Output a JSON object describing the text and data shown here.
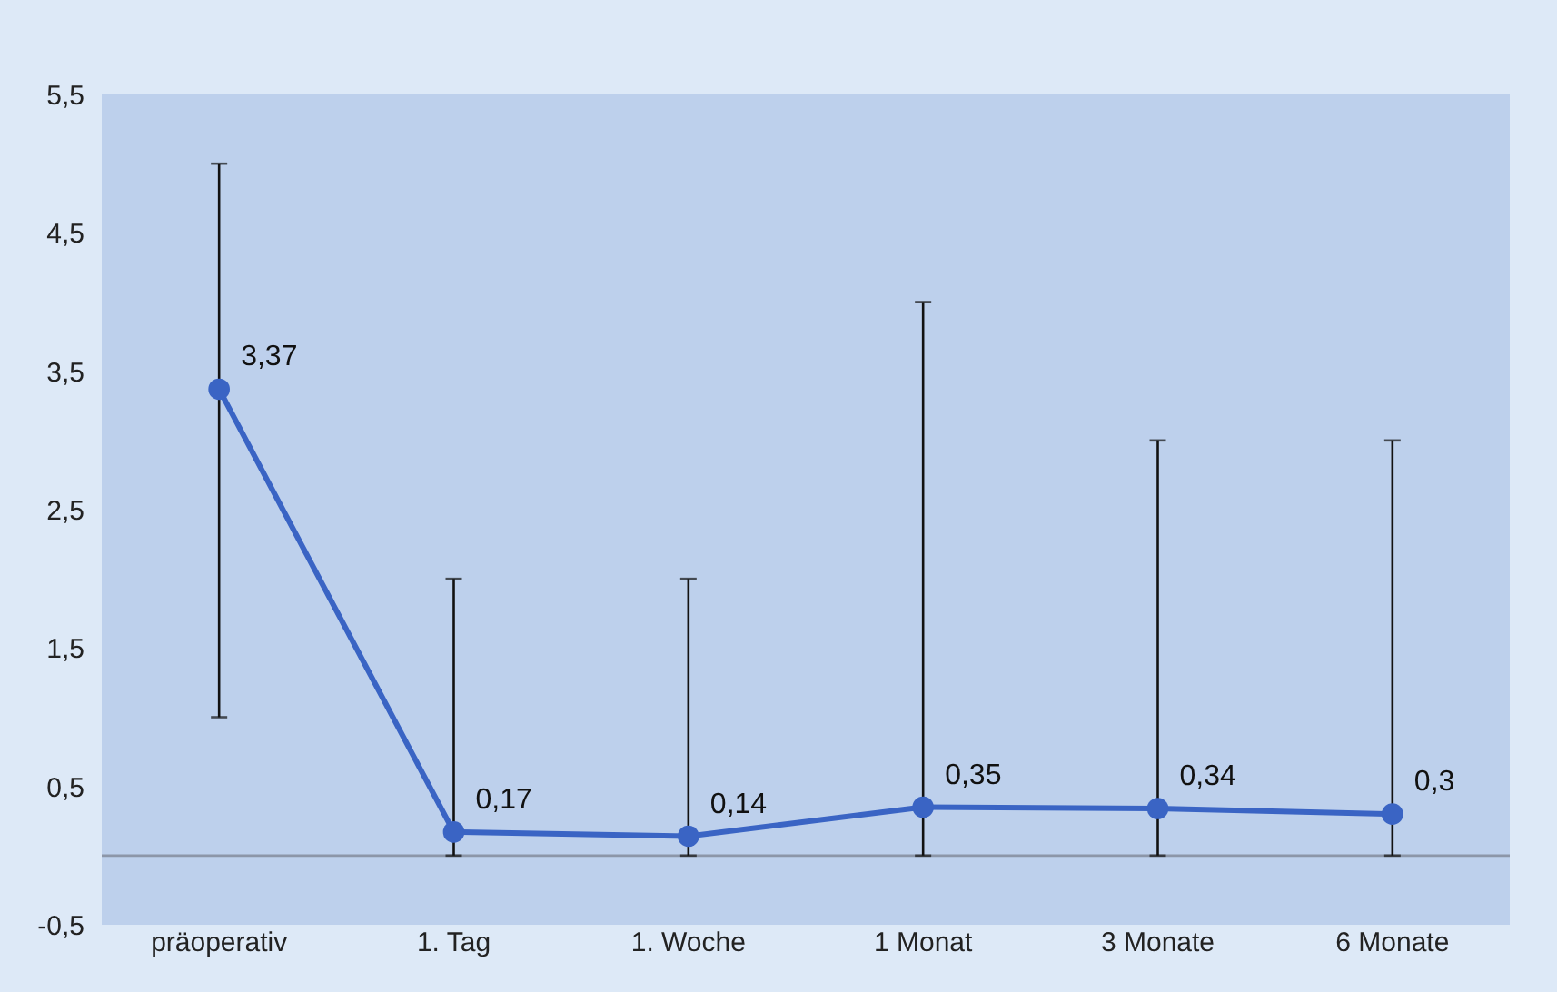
{
  "chart_data": {
    "type": "line",
    "categories": [
      "präoperativ",
      "1. Tag",
      "1. Woche",
      "1 Monat",
      "3 Monate",
      "6 Monate"
    ],
    "series": [
      {
        "color": "#3a64c4",
        "values": [
          3.37,
          0.17,
          0.14,
          0.35,
          0.34,
          0.3
        ],
        "errors": [
          [
            1,
            5
          ],
          [
            0,
            2
          ],
          [
            0,
            2
          ],
          [
            0,
            4
          ],
          [
            0,
            3
          ],
          [
            0,
            3
          ]
        ],
        "value_labels": [
          "3,37",
          "0,17",
          "0,14",
          "0,35",
          "0,34",
          "0,3"
        ]
      }
    ],
    "ylim": [
      -0.5,
      5.5
    ],
    "yticks": [
      {
        "value": -0.5,
        "label": "-0,5"
      },
      {
        "value": 0.5,
        "label": "0,5"
      },
      {
        "value": 1.5,
        "label": "1,5"
      },
      {
        "value": 2.5,
        "label": "2,5"
      },
      {
        "value": 3.5,
        "label": "3,5"
      },
      {
        "value": 4.5,
        "label": "4,5"
      },
      {
        "value": 5.5,
        "label": "5,5"
      }
    ],
    "ref_lines": [
      {
        "axis": "y",
        "value": 0,
        "color": "#8c96a8"
      }
    ],
    "marker": "circle",
    "line_style": "solid",
    "grid": false
  }
}
